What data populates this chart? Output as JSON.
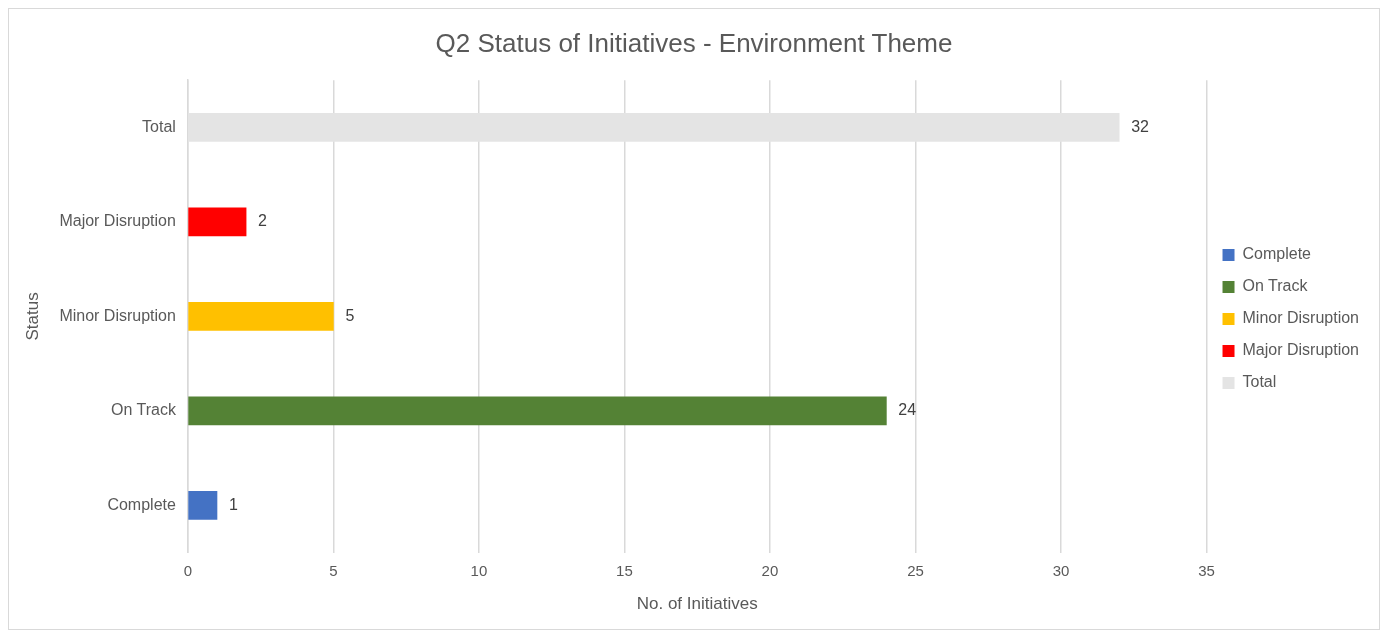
{
  "chart_data": {
    "type": "bar",
    "orientation": "horizontal",
    "title": "Q2 Status of Initiatives - Environment Theme",
    "xlabel": "No. of Initiatives",
    "ylabel": "Status",
    "categories": [
      "Total",
      "Major Disruption",
      "Minor Disruption",
      "On Track",
      "Complete"
    ],
    "series": [
      {
        "name": "Complete",
        "color": "#4472c4",
        "values": [
          null,
          null,
          null,
          null,
          1
        ]
      },
      {
        "name": "On Track",
        "color": "#548235",
        "values": [
          null,
          null,
          null,
          24,
          null
        ]
      },
      {
        "name": "Minor Disruption",
        "color": "#ffc000",
        "values": [
          null,
          null,
          5,
          null,
          null
        ]
      },
      {
        "name": "Major Disruption",
        "color": "#ff0000",
        "values": [
          null,
          2,
          null,
          null,
          null
        ]
      },
      {
        "name": "Total",
        "color": "#e4e4e4",
        "values": [
          32,
          null,
          null,
          null,
          null
        ]
      }
    ],
    "xlim": [
      0,
      35
    ],
    "xticks": [
      0,
      5,
      10,
      15,
      20,
      25,
      30,
      35
    ],
    "grid": "x",
    "legend": "right",
    "data_labels": true
  }
}
